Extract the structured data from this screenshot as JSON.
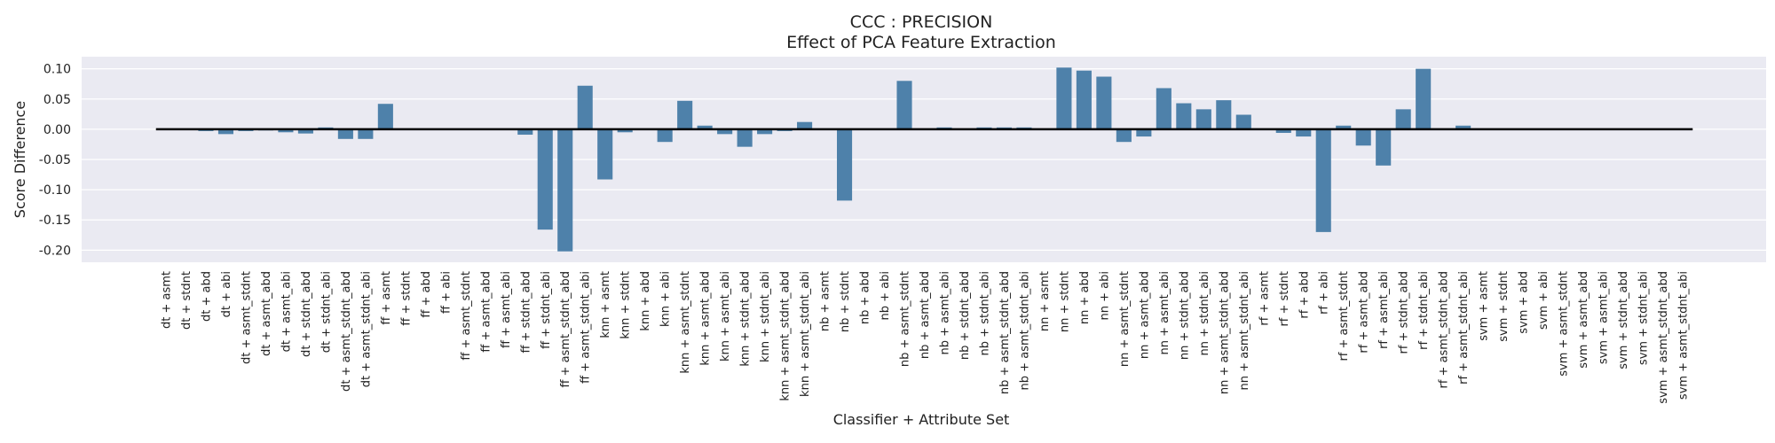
{
  "chart_data": {
    "type": "bar",
    "title": "CCC : PRECISION",
    "subtitle": "Effect of PCA Feature Extraction",
    "xlabel": "Classifier + Attribute Set",
    "ylabel": "Score Difference",
    "ylim": [
      -0.22,
      0.12
    ],
    "yticks": [
      0.1,
      0.05,
      0.0,
      -0.05,
      -0.1,
      -0.15,
      -0.2
    ],
    "ytick_labels": [
      "0.10",
      "0.05",
      "0.00",
      "-0.05",
      "-0.10",
      "-0.15",
      "-0.20"
    ],
    "grid": true,
    "bar_color": "#4e81aa",
    "background_color": "#eaeaf2",
    "zero_line": true,
    "categories": [
      "dt + asmt",
      "dt + stdnt",
      "dt + abd",
      "dt + abi",
      "dt + asmt_stdnt",
      "dt + asmt_abd",
      "dt + asmt_abi",
      "dt + stdnt_abd",
      "dt + stdnt_abi",
      "dt + asmt_stdnt_abd",
      "dt + asmt_stdnt_abi",
      "ff + asmt",
      "ff + stdnt",
      "ff + abd",
      "ff + abi",
      "ff + asmt_stdnt",
      "ff + asmt_abd",
      "ff + asmt_abi",
      "ff + stdnt_abd",
      "ff + stdnt_abi",
      "ff + asmt_stdnt_abd",
      "ff + asmt_stdnt_abi",
      "knn + asmt",
      "knn + stdnt",
      "knn + abd",
      "knn + abi",
      "knn + asmt_stdnt",
      "knn + asmt_abd",
      "knn + asmt_abi",
      "knn + stdnt_abd",
      "knn + stdnt_abi",
      "knn + asmt_stdnt_abd",
      "knn + asmt_stdnt_abi",
      "nb + asmt",
      "nb + stdnt",
      "nb + abd",
      "nb + abi",
      "nb + asmt_stdnt",
      "nb + asmt_abd",
      "nb + asmt_abi",
      "nb + stdnt_abd",
      "nb + stdnt_abi",
      "nb + asmt_stdnt_abd",
      "nb + asmt_stdnt_abi",
      "nn + asmt",
      "nn + stdnt",
      "nn + abd",
      "nn + abi",
      "nn + asmt_stdnt",
      "nn + asmt_abd",
      "nn + asmt_abi",
      "nn + stdnt_abd",
      "nn + stdnt_abi",
      "nn + asmt_stdnt_abd",
      "nn + asmt_stdnt_abi",
      "rf + asmt",
      "rf + stdnt",
      "rf + abd",
      "rf + abi",
      "rf + asmt_stdnt",
      "rf + asmt_abd",
      "rf + asmt_abi",
      "rf + stdnt_abd",
      "rf + stdnt_abi",
      "rf + asmt_stdnt_abd",
      "rf + asmt_stdnt_abi",
      "svm + asmt",
      "svm + stdnt",
      "svm + abd",
      "svm + abi",
      "svm + asmt_stdnt",
      "svm + asmt_abd",
      "svm + asmt_abi",
      "svm + stdnt_abd",
      "svm + stdnt_abi",
      "svm + asmt_stdnt_abd",
      "svm + asmt_stdnt_abi"
    ],
    "values": [
      0.0,
      0.0,
      -0.003,
      -0.008,
      -0.003,
      -0.002,
      -0.005,
      -0.007,
      0.003,
      -0.016,
      -0.016,
      0.042,
      0.0,
      0.0,
      0.0,
      0.0,
      0.0,
      0.0,
      -0.009,
      -0.166,
      -0.202,
      0.072,
      -0.083,
      -0.005,
      0.0,
      -0.021,
      0.047,
      0.006,
      -0.008,
      -0.029,
      -0.008,
      -0.003,
      0.012,
      0.0,
      -0.118,
      0.0,
      0.0,
      0.08,
      0.0,
      0.003,
      0.0,
      0.003,
      0.003,
      0.003,
      0.0,
      0.102,
      0.097,
      0.087,
      -0.021,
      -0.012,
      0.068,
      0.043,
      0.033,
      0.048,
      0.024,
      0.0,
      -0.006,
      -0.012,
      -0.17,
      0.006,
      -0.027,
      -0.06,
      0.033,
      0.1,
      0.0,
      0.006,
      0.0,
      0.0,
      0.0,
      0.0,
      0.0,
      0.0,
      0.0,
      0.0,
      0.0,
      0.0,
      0.0
    ]
  }
}
